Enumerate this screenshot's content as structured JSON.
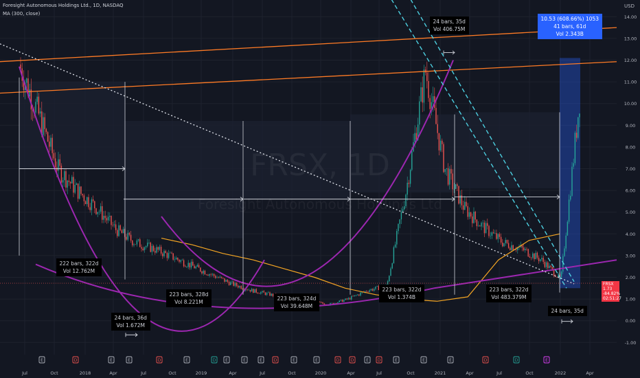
{
  "header": {
    "title": "Foresight Autonomous Holdings Ltd., 1D, NASDAQ",
    "indicator": "MA (300, close)",
    "currency": "USD"
  },
  "watermark": {
    "symbol": "FRSX, 1D",
    "name": "Foresight Autonomous Holdings Ltd"
  },
  "price_tag": {
    "symbol": "FRSX",
    "price": "1.73",
    "change": "-84.82%",
    "countdown": "02:51:27"
  },
  "colors": {
    "background": "#131722",
    "up": "#26a69a",
    "down": "#ef5350",
    "ma": "#f5a623",
    "arc": "#9c27b0",
    "resistance": "#ff7b25",
    "channel": "#4dd0e1",
    "trend": "#e0e3eb",
    "selection": "#2962ff"
  },
  "measurements": [
    {
      "id": "m1",
      "lines": [
        "222 bars, 322d",
        "Vol 12.762M"
      ]
    },
    {
      "id": "m2",
      "lines": [
        "24 bars, 36d",
        "Vol 1.672M"
      ]
    },
    {
      "id": "m3",
      "lines": [
        "223 bars, 328d",
        "Vol 8.221M"
      ]
    },
    {
      "id": "m4",
      "lines": [
        "223 bars, 324d",
        "Vol 39.648M"
      ]
    },
    {
      "id": "m5",
      "lines": [
        "223 bars, 322d",
        "Vol 1.374B"
      ]
    },
    {
      "id": "m6",
      "lines": [
        "24 bars, 35d",
        "Vol 406.75M"
      ]
    },
    {
      "id": "m7",
      "lines": [
        "223 bars, 322d",
        "Vol 483.379M"
      ]
    },
    {
      "id": "m8",
      "lines": [
        "24 bars, 35d"
      ]
    },
    {
      "id": "m9",
      "lines": [
        "10.53 (608.66%) 1053",
        "41 bars, 61d",
        "Vol 2.343B"
      ]
    }
  ],
  "chart_data": {
    "type": "candlestick",
    "title": "Foresight Autonomous Holdings Ltd., 1D, NASDAQ",
    "indicator": "MA (300, close)",
    "ylim": [
      -1.5,
      14.5
    ],
    "y_ticks": [
      14.0,
      13.0,
      12.0,
      11.0,
      10.0,
      9.0,
      8.0,
      7.0,
      6.0,
      5.0,
      4.0,
      3.0,
      2.0,
      1.0,
      0.0,
      -1.0
    ],
    "x_ticks": [
      "Jul",
      "Oct",
      "2018",
      "Apr",
      "Jul",
      "Oct",
      "2019",
      "Apr",
      "Jul",
      "Oct",
      "2020",
      "Apr",
      "Jul",
      "Oct",
      "2021",
      "Apr",
      "Jul",
      "Oct",
      "2022",
      "Apr"
    ],
    "close_series": [
      11.8,
      9.5,
      7.0,
      6.0,
      5.2,
      4.2,
      3.6,
      3.3,
      2.9,
      2.5,
      2.1,
      1.7,
      1.4,
      1.2,
      1.0,
      0.9,
      0.75,
      1.0,
      1.4,
      1.6,
      6.0,
      11.5,
      7.0,
      5.2,
      4.3,
      3.6,
      3.3,
      2.8,
      1.9,
      10.5
    ],
    "ma_300": [
      3.8,
      3.5,
      3.1,
      2.8,
      2.4,
      2.0,
      1.5,
      1.2,
      1.0,
      0.9,
      1.1,
      2.8,
      3.7,
      4.0
    ],
    "events": [
      {
        "label": "E",
        "type": "earnings"
      },
      {
        "label": "D",
        "type": "dividend"
      },
      {
        "label": "E",
        "type": "earnings"
      },
      {
        "label": "E",
        "type": "earnings"
      },
      {
        "label": "D",
        "type": "dividend"
      },
      {
        "label": "E",
        "type": "earnings"
      },
      {
        "label": "D",
        "type": "dividend"
      },
      {
        "label": "E",
        "type": "earnings"
      },
      {
        "label": "E",
        "type": "earnings"
      },
      {
        "label": "E",
        "type": "earnings"
      },
      {
        "label": "D",
        "type": "dividend"
      },
      {
        "label": "E",
        "type": "earnings"
      },
      {
        "label": "E",
        "type": "earnings"
      },
      {
        "label": "D",
        "type": "dividend"
      },
      {
        "label": "D",
        "type": "dividend"
      },
      {
        "label": "E",
        "type": "earnings"
      },
      {
        "label": "D",
        "type": "dividend"
      },
      {
        "label": "E",
        "type": "earnings"
      },
      {
        "label": "E",
        "type": "earnings"
      },
      {
        "label": "E",
        "type": "earnings"
      },
      {
        "label": "D",
        "type": "dividend"
      },
      {
        "label": "D",
        "type": "dividend"
      },
      {
        "label": "E",
        "type": "earnings"
      }
    ]
  }
}
